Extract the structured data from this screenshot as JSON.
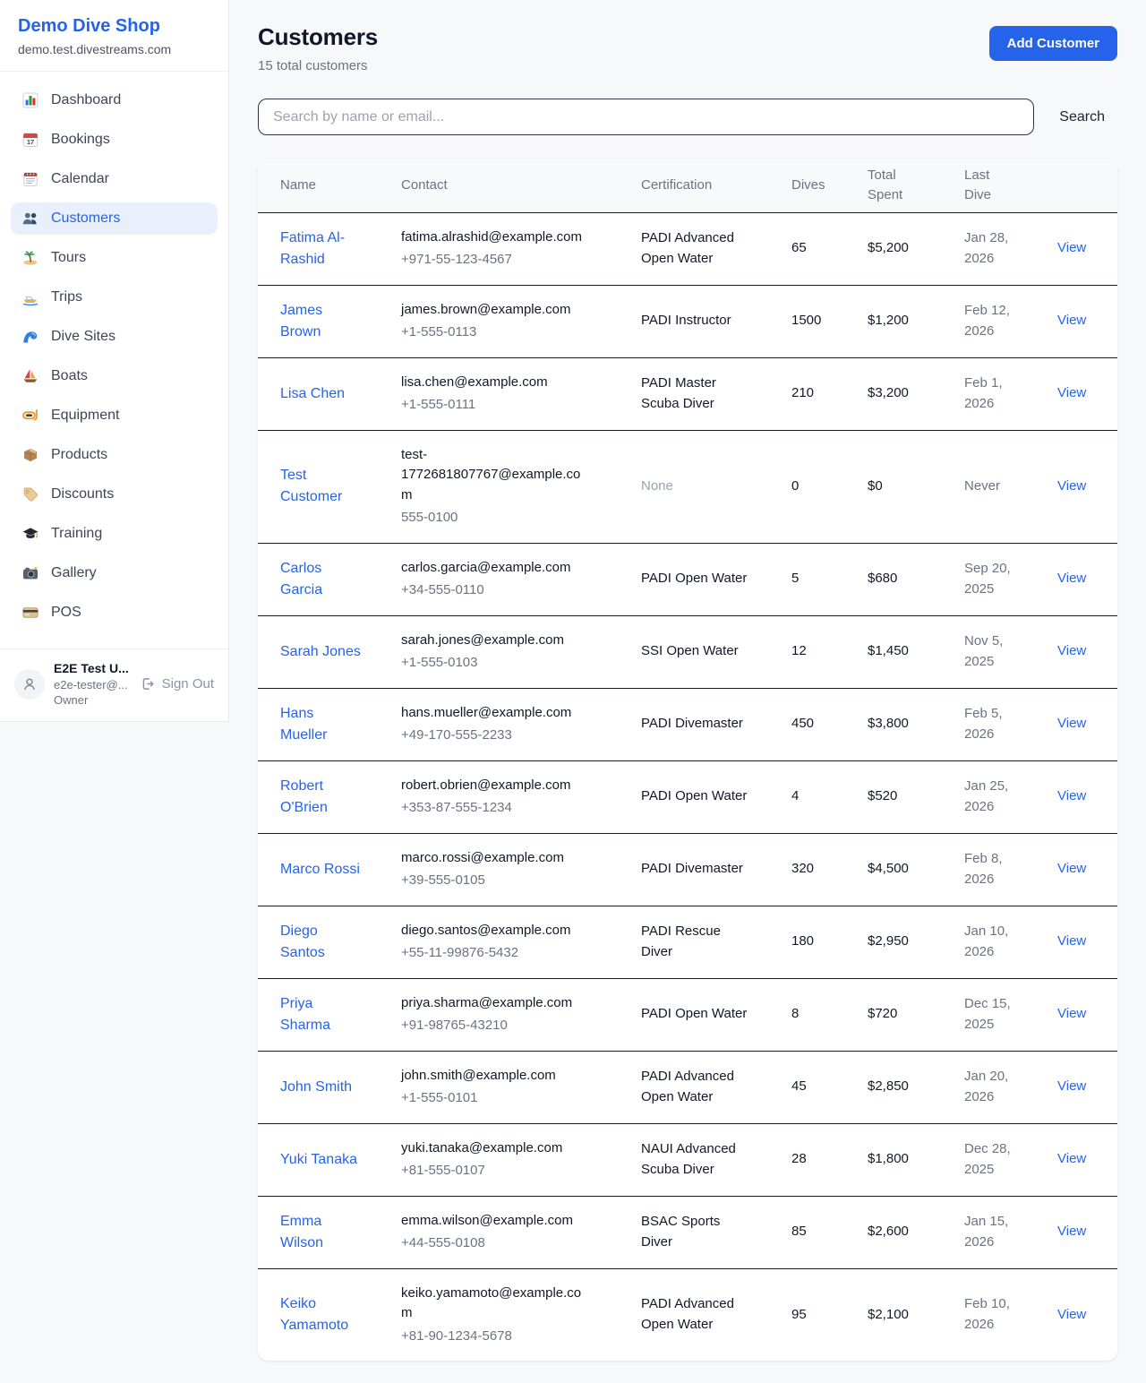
{
  "sidebar": {
    "brand": {
      "name": "Demo Dive Shop",
      "domain": "demo.test.divestreams.com"
    },
    "items": [
      {
        "label": "Dashboard",
        "icon": "dashboard",
        "active": false
      },
      {
        "label": "Bookings",
        "icon": "bookings",
        "active": false
      },
      {
        "label": "Calendar",
        "icon": "calendar",
        "active": false
      },
      {
        "label": "Customers",
        "icon": "customers",
        "active": true
      },
      {
        "label": "Tours",
        "icon": "tours",
        "active": false
      },
      {
        "label": "Trips",
        "icon": "trips",
        "active": false
      },
      {
        "label": "Dive Sites",
        "icon": "dive-sites",
        "active": false
      },
      {
        "label": "Boats",
        "icon": "boats",
        "active": false
      },
      {
        "label": "Equipment",
        "icon": "equipment",
        "active": false
      },
      {
        "label": "Products",
        "icon": "products",
        "active": false
      },
      {
        "label": "Discounts",
        "icon": "discounts",
        "active": false
      },
      {
        "label": "Training",
        "icon": "training",
        "active": false
      },
      {
        "label": "Gallery",
        "icon": "gallery",
        "active": false
      },
      {
        "label": "POS",
        "icon": "pos",
        "active": false
      }
    ],
    "user": {
      "name": "E2E Test U...",
      "email": "e2e-tester@...",
      "role": "Owner",
      "sign_out_label": "Sign Out"
    }
  },
  "header": {
    "title": "Customers",
    "subtitle": "15 total customers",
    "add_button_label": "Add Customer"
  },
  "search": {
    "placeholder": "Search by name or email...",
    "value": "",
    "button_label": "Search"
  },
  "table": {
    "columns": [
      "Name",
      "Contact",
      "Certification",
      "Dives",
      "Total Spent",
      "Last Dive"
    ],
    "view_label": "View",
    "rows": [
      {
        "name": "Fatima Al-Rashid",
        "email": "fatima.alrashid@example.com",
        "phone": "+971-55-123-4567",
        "certification": "PADI Advanced Open Water",
        "dives": "65",
        "total_spent": "$5,200",
        "last_dive": "Jan 28, 2026"
      },
      {
        "name": "James Brown",
        "email": "james.brown@example.com",
        "phone": "+1-555-0113",
        "certification": "PADI Instructor",
        "dives": "1500",
        "total_spent": "$1,200",
        "last_dive": "Feb 12, 2026"
      },
      {
        "name": "Lisa Chen",
        "email": "lisa.chen@example.com",
        "phone": "+1-555-0111",
        "certification": "PADI Master Scuba Diver",
        "dives": "210",
        "total_spent": "$3,200",
        "last_dive": "Feb 1, 2026"
      },
      {
        "name": "Test Customer",
        "email": "test-1772681807767@example.com",
        "phone": "555-0100",
        "certification": "None",
        "dives": "0",
        "total_spent": "$0",
        "last_dive": "Never"
      },
      {
        "name": "Carlos Garcia",
        "email": "carlos.garcia@example.com",
        "phone": "+34-555-0110",
        "certification": "PADI Open Water",
        "dives": "5",
        "total_spent": "$680",
        "last_dive": "Sep 20, 2025"
      },
      {
        "name": "Sarah Jones",
        "email": "sarah.jones@example.com",
        "phone": "+1-555-0103",
        "certification": "SSI Open Water",
        "dives": "12",
        "total_spent": "$1,450",
        "last_dive": "Nov 5, 2025"
      },
      {
        "name": "Hans Mueller",
        "email": "hans.mueller@example.com",
        "phone": "+49-170-555-2233",
        "certification": "PADI Divemaster",
        "dives": "450",
        "total_spent": "$3,800",
        "last_dive": "Feb 5, 2026"
      },
      {
        "name": "Robert O'Brien",
        "email": "robert.obrien@example.com",
        "phone": "+353-87-555-1234",
        "certification": "PADI Open Water",
        "dives": "4",
        "total_spent": "$520",
        "last_dive": "Jan 25, 2026"
      },
      {
        "name": "Marco Rossi",
        "email": "marco.rossi@example.com",
        "phone": "+39-555-0105",
        "certification": "PADI Divemaster",
        "dives": "320",
        "total_spent": "$4,500",
        "last_dive": "Feb 8, 2026"
      },
      {
        "name": "Diego Santos",
        "email": "diego.santos@example.com",
        "phone": "+55-11-99876-5432",
        "certification": "PADI Rescue Diver",
        "dives": "180",
        "total_spent": "$2,950",
        "last_dive": "Jan 10, 2026"
      },
      {
        "name": "Priya Sharma",
        "email": "priya.sharma@example.com",
        "phone": "+91-98765-43210",
        "certification": "PADI Open Water",
        "dives": "8",
        "total_spent": "$720",
        "last_dive": "Dec 15, 2025"
      },
      {
        "name": "John Smith",
        "email": "john.smith@example.com",
        "phone": "+1-555-0101",
        "certification": "PADI Advanced Open Water",
        "dives": "45",
        "total_spent": "$2,850",
        "last_dive": "Jan 20, 2026"
      },
      {
        "name": "Yuki Tanaka",
        "email": "yuki.tanaka@example.com",
        "phone": "+81-555-0107",
        "certification": "NAUI Advanced Scuba Diver",
        "dives": "28",
        "total_spent": "$1,800",
        "last_dive": "Dec 28, 2025"
      },
      {
        "name": "Emma Wilson",
        "email": "emma.wilson@example.com",
        "phone": "+44-555-0108",
        "certification": "BSAC Sports Diver",
        "dives": "85",
        "total_spent": "$2,600",
        "last_dive": "Jan 15, 2026"
      },
      {
        "name": "Keiko Yamamoto",
        "email": "keiko.yamamoto@example.com",
        "phone": "+81-90-1234-5678",
        "certification": "PADI Advanced Open Water",
        "dives": "95",
        "total_spent": "$2,100",
        "last_dive": "Feb 10, 2026"
      }
    ]
  },
  "colors": {
    "accent": "#2563eb",
    "active_nav_bg": "#e9f0fc",
    "page_bg": "#f7f8fa",
    "card_bg": "#ffffff",
    "table_header_bg": "#f8f9fb",
    "row_border": "#161a22",
    "muted_text": "#6b7280"
  }
}
